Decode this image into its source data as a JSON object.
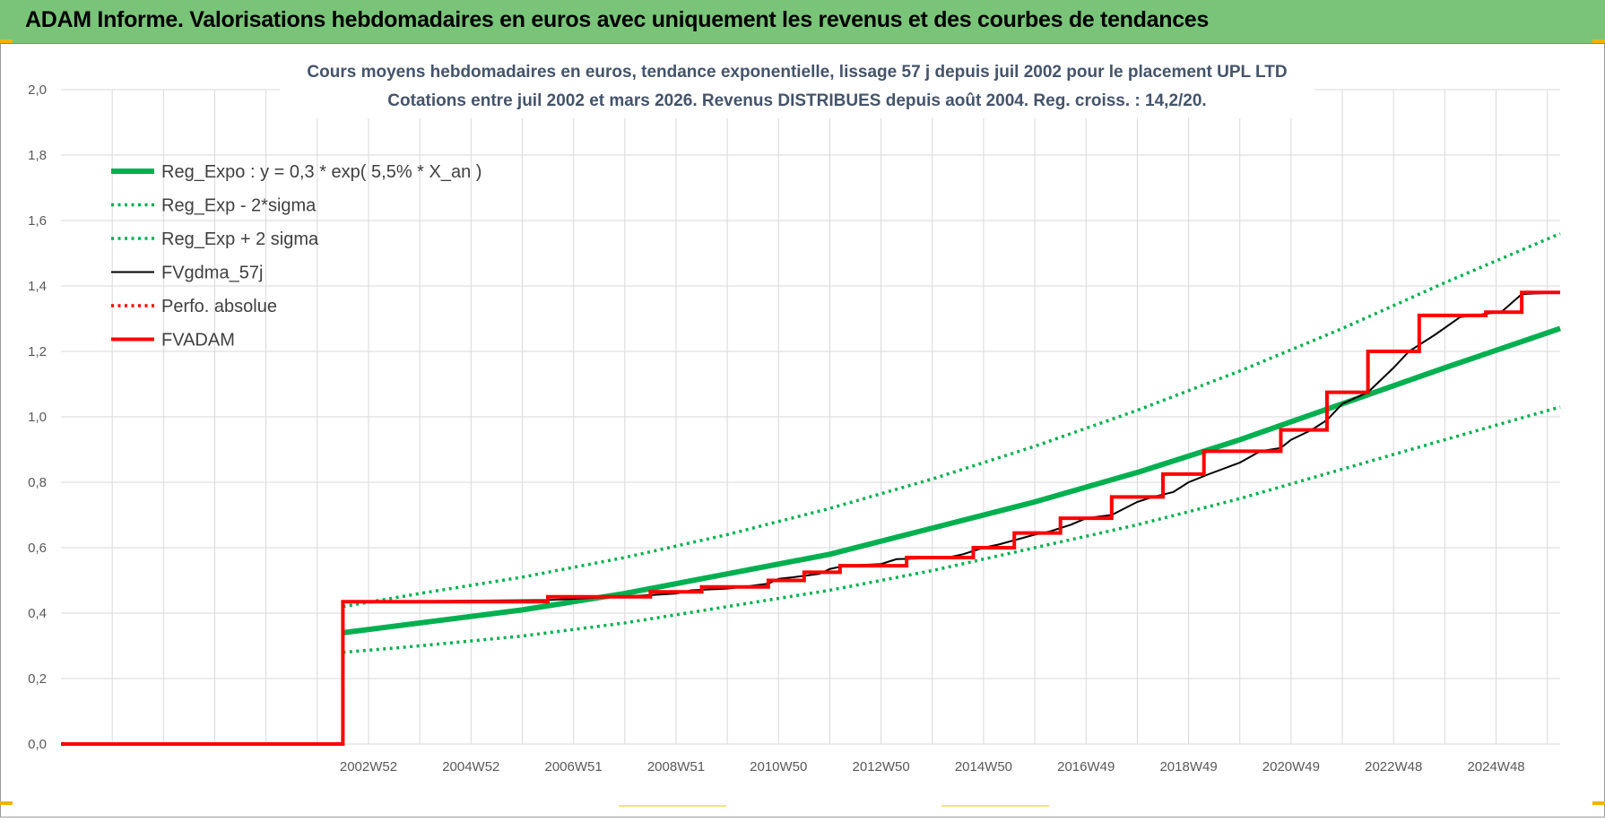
{
  "banner": {
    "title": "ADAM Informe. Valorisations hebdomadaires en euros avec uniquement les revenus et des courbes de tendances"
  },
  "colors": {
    "banner_bg": "#79c479",
    "green": "#00b050",
    "red": "#ff0000",
    "black": "#000000",
    "grid": "#d9d9d9",
    "title_text": "#44546a"
  },
  "chart_data": {
    "type": "line",
    "title_lines": [
      "Cours moyens hebdomadaires en euros, tendance exponentielle, lissage 57 j depuis juil 2002 pour le placement UPL LTD",
      "Cotations entre juil 2002 et mars 2026. Revenus DISTRIBUES depuis août 2004. Reg. croiss. : 14,2/20."
    ],
    "xlabel": "",
    "ylabel": "",
    "ylim": [
      0,
      2
    ],
    "xlim": [
      1997.0,
      2026.25
    ],
    "yticks": [
      "0,0",
      "0,2",
      "0,4",
      "0,6",
      "0,8",
      "1,0",
      "1,2",
      "1,4",
      "1,6",
      "1,8",
      "2,0"
    ],
    "xticks": [
      {
        "label": "2002W52",
        "x": 2003.0
      },
      {
        "label": "2004W52",
        "x": 2005.0
      },
      {
        "label": "2006W51",
        "x": 2007.0
      },
      {
        "label": "2008W51",
        "x": 2009.0
      },
      {
        "label": "2010W50",
        "x": 2011.0
      },
      {
        "label": "2012W50",
        "x": 2013.0
      },
      {
        "label": "2014W50",
        "x": 2015.0
      },
      {
        "label": "2016W49",
        "x": 2017.0
      },
      {
        "label": "2018W49",
        "x": 2019.0
      },
      {
        "label": "2020W49",
        "x": 2021.0
      },
      {
        "label": "2022W48",
        "x": 2023.0
      },
      {
        "label": "2024W48",
        "x": 2025.0
      }
    ],
    "grid": true,
    "legend_position": "top-left",
    "series": [
      {
        "name": "Reg_Expo : y = 0,3 * exp( 5,5% *  X_an )",
        "style": "solid-thick",
        "color": "#00b050",
        "x": [
          2002.5,
          2004.0,
          2006.0,
          2008.0,
          2010.0,
          2012.0,
          2014.0,
          2016.0,
          2018.0,
          2020.0,
          2022.0,
          2024.0,
          2026.25
        ],
        "y": [
          0.34,
          0.37,
          0.41,
          0.46,
          0.52,
          0.58,
          0.66,
          0.74,
          0.83,
          0.93,
          1.04,
          1.15,
          1.27
        ]
      },
      {
        "name": "Reg_Exp - 2*sigma",
        "style": "dotted",
        "color": "#00b050",
        "x": [
          2002.5,
          2004.0,
          2006.0,
          2008.0,
          2010.0,
          2012.0,
          2014.0,
          2016.0,
          2018.0,
          2020.0,
          2022.0,
          2024.0,
          2026.25
        ],
        "y": [
          0.28,
          0.3,
          0.33,
          0.37,
          0.42,
          0.47,
          0.53,
          0.6,
          0.67,
          0.75,
          0.84,
          0.93,
          1.03
        ]
      },
      {
        "name": "Reg_Exp + 2 sigma",
        "style": "dotted",
        "color": "#00b050",
        "x": [
          2002.5,
          2004.0,
          2006.0,
          2008.0,
          2010.0,
          2012.0,
          2014.0,
          2016.0,
          2018.0,
          2020.0,
          2022.0,
          2024.0,
          2026.25
        ],
        "y": [
          0.42,
          0.46,
          0.51,
          0.57,
          0.64,
          0.72,
          0.81,
          0.91,
          1.02,
          1.14,
          1.27,
          1.41,
          1.56
        ]
      },
      {
        "name": "FVgdma_57j",
        "style": "solid-thin",
        "color": "#000000",
        "x": [
          1997.0,
          2002.5,
          2002.5,
          2006.5,
          2008.5,
          2009.0,
          2009.3,
          2010.0,
          2010.3,
          2010.8,
          2011.0,
          2011.3,
          2011.8,
          2012.0,
          2012.3,
          2013.0,
          2013.3,
          2014.3,
          2014.6,
          2015.0,
          2015.3,
          2016.0,
          2016.3,
          2016.7,
          2017.0,
          2017.5,
          2018.0,
          2018.3,
          2018.7,
          2019.0,
          2019.4,
          2020.0,
          2020.4,
          2020.8,
          2021.0,
          2021.4,
          2021.7,
          2022.0,
          2022.5,
          2023.0,
          2023.3,
          2023.8,
          2024.3,
          2024.6,
          2024.8,
          2025.1,
          2025.5,
          2026.25
        ],
        "y": [
          0.0,
          0.0,
          0.435,
          0.44,
          0.455,
          0.46,
          0.47,
          0.475,
          0.48,
          0.49,
          0.505,
          0.51,
          0.52,
          0.535,
          0.545,
          0.55,
          0.565,
          0.57,
          0.58,
          0.6,
          0.61,
          0.64,
          0.65,
          0.67,
          0.69,
          0.7,
          0.74,
          0.755,
          0.77,
          0.8,
          0.825,
          0.86,
          0.895,
          0.905,
          0.93,
          0.96,
          0.99,
          1.04,
          1.075,
          1.15,
          1.2,
          1.25,
          1.305,
          1.31,
          1.315,
          1.32,
          1.375,
          1.38
        ]
      },
      {
        "name": "Perfo. absolue",
        "style": "dotted",
        "color": "#ff0000",
        "x": [
          1997.0,
          2002.5
        ],
        "y": [
          0.0,
          0.0
        ]
      },
      {
        "name": "FVADAM",
        "style": "step-thick",
        "color": "#ff0000",
        "x": [
          1997.0,
          2002.5,
          2006.5,
          2008.5,
          2009.5,
          2010.8,
          2011.5,
          2012.2,
          2013.5,
          2014.8,
          2015.6,
          2016.5,
          2017.5,
          2018.5,
          2019.3,
          2020.8,
          2021.7,
          2022.5,
          2023.5,
          2024.8,
          2025.5,
          2026.25
        ],
        "y": [
          0.0,
          0.435,
          0.45,
          0.465,
          0.48,
          0.5,
          0.525,
          0.545,
          0.57,
          0.6,
          0.645,
          0.69,
          0.755,
          0.825,
          0.895,
          0.96,
          1.075,
          1.2,
          1.31,
          1.32,
          1.38,
          1.38
        ]
      }
    ]
  }
}
